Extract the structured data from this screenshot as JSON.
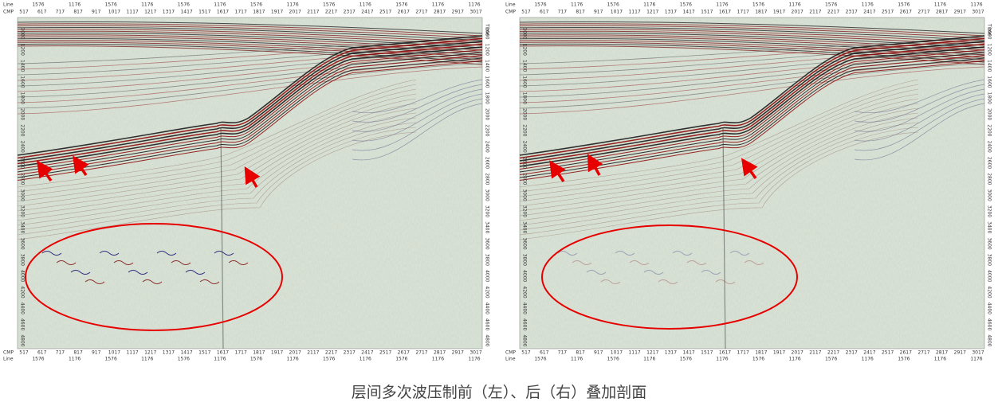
{
  "panels": [
    {
      "line_label": "Line",
      "cmp_label": "CMP",
      "time_label": "Time",
      "cmp_ticks": [
        "517",
        "617",
        "717",
        "817",
        "917",
        "1017",
        "1117",
        "1217",
        "1317",
        "1417",
        "1517",
        "1617",
        "1717",
        "1817",
        "1917",
        "2017",
        "2117",
        "2217",
        "2317",
        "2417",
        "2517",
        "2617",
        "2717",
        "2817",
        "2917",
        "3017"
      ],
      "line_ticks": [
        "1576",
        "1176",
        "1576",
        "1176",
        "1576",
        "1176",
        "1576",
        "1176",
        "1576",
        "1176",
        "1576",
        "1176",
        "1176"
      ],
      "time_ticks": [
        "1000",
        "1200",
        "1400",
        "1600",
        "1800",
        "2000",
        "2200",
        "2400",
        "2600",
        "2800",
        "3000",
        "3200",
        "3400",
        "3600",
        "3800",
        "4000",
        "4200",
        "4400",
        "4600",
        "4800"
      ]
    },
    {
      "line_label": "Line",
      "cmp_label": "CMP",
      "time_label": "Time",
      "cmp_ticks": [
        "517",
        "617",
        "717",
        "817",
        "917",
        "1017",
        "1117",
        "1217",
        "1317",
        "1417",
        "1517",
        "1617",
        "1717",
        "1817",
        "1917",
        "2017",
        "2117",
        "2217",
        "2317",
        "2417",
        "2517",
        "2617",
        "2717",
        "2817",
        "2917",
        "3017"
      ],
      "line_ticks": [
        "1576",
        "1176",
        "1576",
        "1176",
        "1576",
        "1176",
        "1576",
        "1176",
        "1576",
        "1176",
        "1576",
        "1176",
        "1176"
      ],
      "time_ticks": [
        "1000",
        "1200",
        "1400",
        "1600",
        "1800",
        "2000",
        "2200",
        "2400",
        "2600",
        "2800",
        "3000",
        "3200",
        "3400",
        "3600",
        "3800",
        "4000",
        "4200",
        "4400",
        "4600",
        "4800"
      ]
    }
  ],
  "caption": "层间多次波压制前（左）、后（右）叠加剖面"
}
